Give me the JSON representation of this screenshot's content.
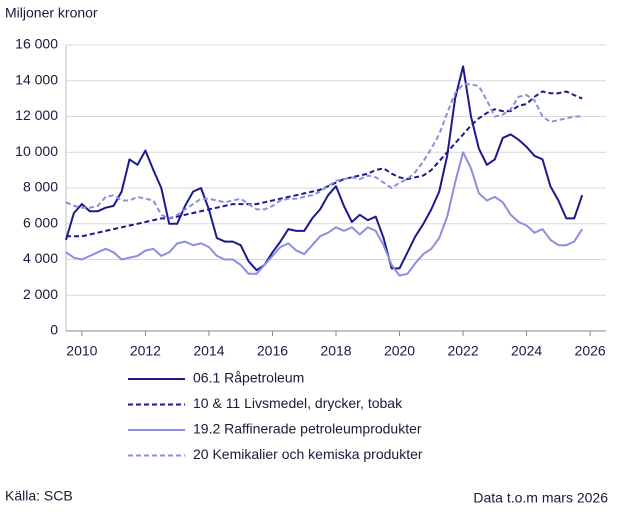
{
  "chart_data": {
    "type": "line",
    "y_label": "Miljoner kronor",
    "source": "Källa: SCB",
    "note": "Data t.o.m mars 2026",
    "x": [
      2009.5,
      2009.75,
      2010,
      2010.25,
      2010.5,
      2010.75,
      2011,
      2011.25,
      2011.5,
      2011.75,
      2012,
      2012.25,
      2012.5,
      2012.75,
      2013,
      2013.25,
      2013.5,
      2013.75,
      2014,
      2014.25,
      2014.5,
      2014.75,
      2015,
      2015.25,
      2015.5,
      2015.75,
      2016,
      2016.25,
      2016.5,
      2016.75,
      2017,
      2017.25,
      2017.5,
      2017.75,
      2018,
      2018.25,
      2018.5,
      2018.75,
      2019,
      2019.25,
      2019.5,
      2019.75,
      2020,
      2020.25,
      2020.5,
      2020.75,
      2021,
      2021.25,
      2021.5,
      2021.75,
      2022,
      2022.25,
      2022.5,
      2022.75,
      2023,
      2023.25,
      2023.5,
      2023.75,
      2024,
      2024.25,
      2024.5,
      2024.75,
      2025,
      2025.25,
      2025.5,
      2025.75
    ],
    "series": [
      {
        "name": "06.1 Råpetroleum",
        "color": "#1a1a8c",
        "dashed": false,
        "values": [
          5100,
          6600,
          7100,
          6700,
          6700,
          6900,
          7000,
          7800,
          9600,
          9300,
          10100,
          9000,
          8000,
          6000,
          6000,
          7000,
          7800,
          8000,
          6800,
          5200,
          5000,
          5000,
          4800,
          3900,
          3400,
          3700,
          4400,
          5000,
          5700,
          5600,
          5600,
          6300,
          6800,
          7600,
          8100,
          7000,
          6100,
          6500,
          6200,
          6400,
          5200,
          3500,
          3500,
          4400,
          5300,
          6000,
          6800,
          7800,
          9800,
          13000,
          14800,
          12000,
          10200,
          9300,
          9600,
          10800,
          11000,
          10700,
          10300,
          9800,
          9600,
          8100,
          7300,
          6300,
          6300,
          7600
        ]
      },
      {
        "name": "10 & 11 Livsmedel, drycker, tobak",
        "color": "#1a1a8c",
        "dashed": true,
        "values": [
          5300,
          5300,
          5300,
          5400,
          5500,
          5600,
          5700,
          5800,
          5900,
          6000,
          6100,
          6200,
          6300,
          6300,
          6400,
          6500,
          6600,
          6700,
          6800,
          6900,
          7000,
          7100,
          7100,
          7100,
          7100,
          7200,
          7300,
          7400,
          7500,
          7600,
          7700,
          7800,
          7900,
          8100,
          8300,
          8500,
          8600,
          8700,
          8800,
          9000,
          9100,
          8800,
          8600,
          8500,
          8600,
          8700,
          9000,
          9500,
          10000,
          10500,
          11000,
          11500,
          11900,
          12200,
          12400,
          12300,
          12300,
          12600,
          12700,
          13100,
          13400,
          13300,
          13300,
          13400,
          13200,
          13000
        ]
      },
      {
        "name": "19.2 Raffinerade petroleumprodukter",
        "color": "#8a8fe0",
        "dashed": false,
        "values": [
          4400,
          4100,
          4000,
          4200,
          4400,
          4600,
          4400,
          4000,
          4100,
          4200,
          4500,
          4600,
          4200,
          4400,
          4900,
          5000,
          4800,
          4900,
          4700,
          4200,
          4000,
          4000,
          3700,
          3200,
          3200,
          3700,
          4200,
          4700,
          4900,
          4500,
          4300,
          4800,
          5300,
          5500,
          5800,
          5600,
          5800,
          5400,
          5800,
          5600,
          4800,
          3700,
          3100,
          3200,
          3800,
          4300,
          4600,
          5200,
          6400,
          8300,
          10000,
          9100,
          7700,
          7300,
          7500,
          7200,
          6500,
          6100,
          5900,
          5500,
          5700,
          5100,
          4800,
          4800,
          5000,
          5700
        ]
      },
      {
        "name": "20 Kemikalier och kemiska produkter",
        "color": "#8a8fe0",
        "dashed": true,
        "values": [
          7200,
          7000,
          6900,
          6900,
          7000,
          7500,
          7600,
          7300,
          7300,
          7500,
          7400,
          7300,
          6500,
          6300,
          6500,
          6800,
          7100,
          7400,
          7400,
          7300,
          7200,
          7300,
          7400,
          7100,
          6800,
          6800,
          7000,
          7300,
          7400,
          7400,
          7500,
          7600,
          7800,
          8100,
          8400,
          8500,
          8600,
          8500,
          8700,
          8600,
          8300,
          8000,
          8300,
          8500,
          8900,
          9500,
          10200,
          11000,
          12200,
          13300,
          13800,
          13800,
          13700,
          12900,
          12000,
          12100,
          12400,
          13100,
          13200,
          12900,
          12000,
          11700,
          11800,
          11900,
          12000,
          12000
        ]
      }
    ],
    "xlim": [
      2009.5,
      2026.5
    ],
    "xticks": [
      2010,
      2012,
      2014,
      2016,
      2018,
      2020,
      2022,
      2024,
      2026
    ],
    "ylim": [
      0,
      16000
    ],
    "yticks": [
      0,
      {
        "value": 2000,
        "label": "2 000"
      },
      {
        "value": 4000,
        "label": "4 000"
      },
      {
        "value": 6000,
        "label": "6 000"
      },
      {
        "value": 8000,
        "label": "8 000"
      },
      {
        "value": 10000,
        "label": "10 000"
      },
      {
        "value": 12000,
        "label": "12 000"
      },
      {
        "value": 14000,
        "label": "14 000"
      },
      {
        "value": 16000,
        "label": "16 000"
      }
    ],
    "grid": true,
    "legend": "bottom"
  }
}
